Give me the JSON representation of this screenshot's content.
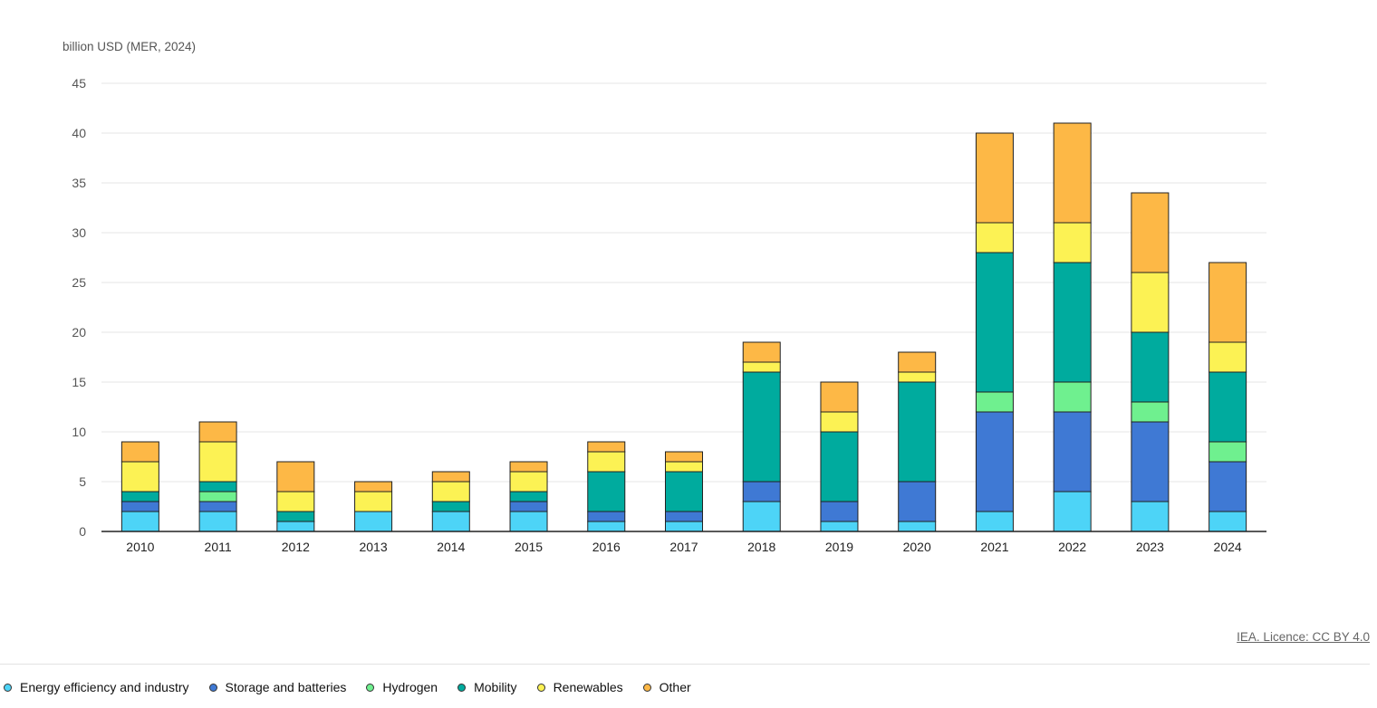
{
  "credit": "IEA. Licence: CC BY 4.0",
  "chart_data": {
    "type": "bar",
    "stacked": true,
    "ylabel": "billion USD (MER, 2024)",
    "ylim": [
      0,
      45
    ],
    "yticks": [
      0,
      5,
      10,
      15,
      20,
      25,
      30,
      35,
      40,
      45
    ],
    "grid": true,
    "legend_position": "bottom-left",
    "categories": [
      "2010",
      "2011",
      "2012",
      "2013",
      "2014",
      "2015",
      "2016",
      "2017",
      "2018",
      "2019",
      "2020",
      "2021",
      "2022",
      "2023",
      "2024"
    ],
    "series": [
      {
        "name": "Energy efficiency and industry",
        "color": "#4dd4f7",
        "values": [
          2,
          2,
          1,
          2,
          2,
          2,
          1,
          1,
          3,
          1,
          1,
          2,
          4,
          3,
          2
        ]
      },
      {
        "name": "Storage and batteries",
        "color": "#3f79d4",
        "values": [
          1,
          1,
          0,
          0,
          0,
          1,
          1,
          1,
          2,
          2,
          4,
          10,
          8,
          8,
          5
        ]
      },
      {
        "name": "Hydrogen",
        "color": "#6ff08f",
        "values": [
          0,
          1,
          0,
          0,
          0,
          0,
          0,
          0,
          0,
          0,
          0,
          2,
          3,
          2,
          2
        ]
      },
      {
        "name": "Mobility",
        "color": "#00ab9e",
        "values": [
          1,
          1,
          1,
          0,
          1,
          1,
          4,
          4,
          11,
          7,
          10,
          14,
          12,
          7,
          7
        ]
      },
      {
        "name": "Renewables",
        "color": "#fcf254",
        "values": [
          3,
          4,
          2,
          2,
          2,
          2,
          2,
          1,
          1,
          2,
          1,
          3,
          4,
          6,
          3
        ]
      },
      {
        "name": "Other",
        "color": "#fdb846",
        "values": [
          2,
          2,
          3,
          1,
          1,
          1,
          1,
          1,
          2,
          3,
          2,
          9,
          10,
          8,
          8
        ]
      }
    ]
  }
}
